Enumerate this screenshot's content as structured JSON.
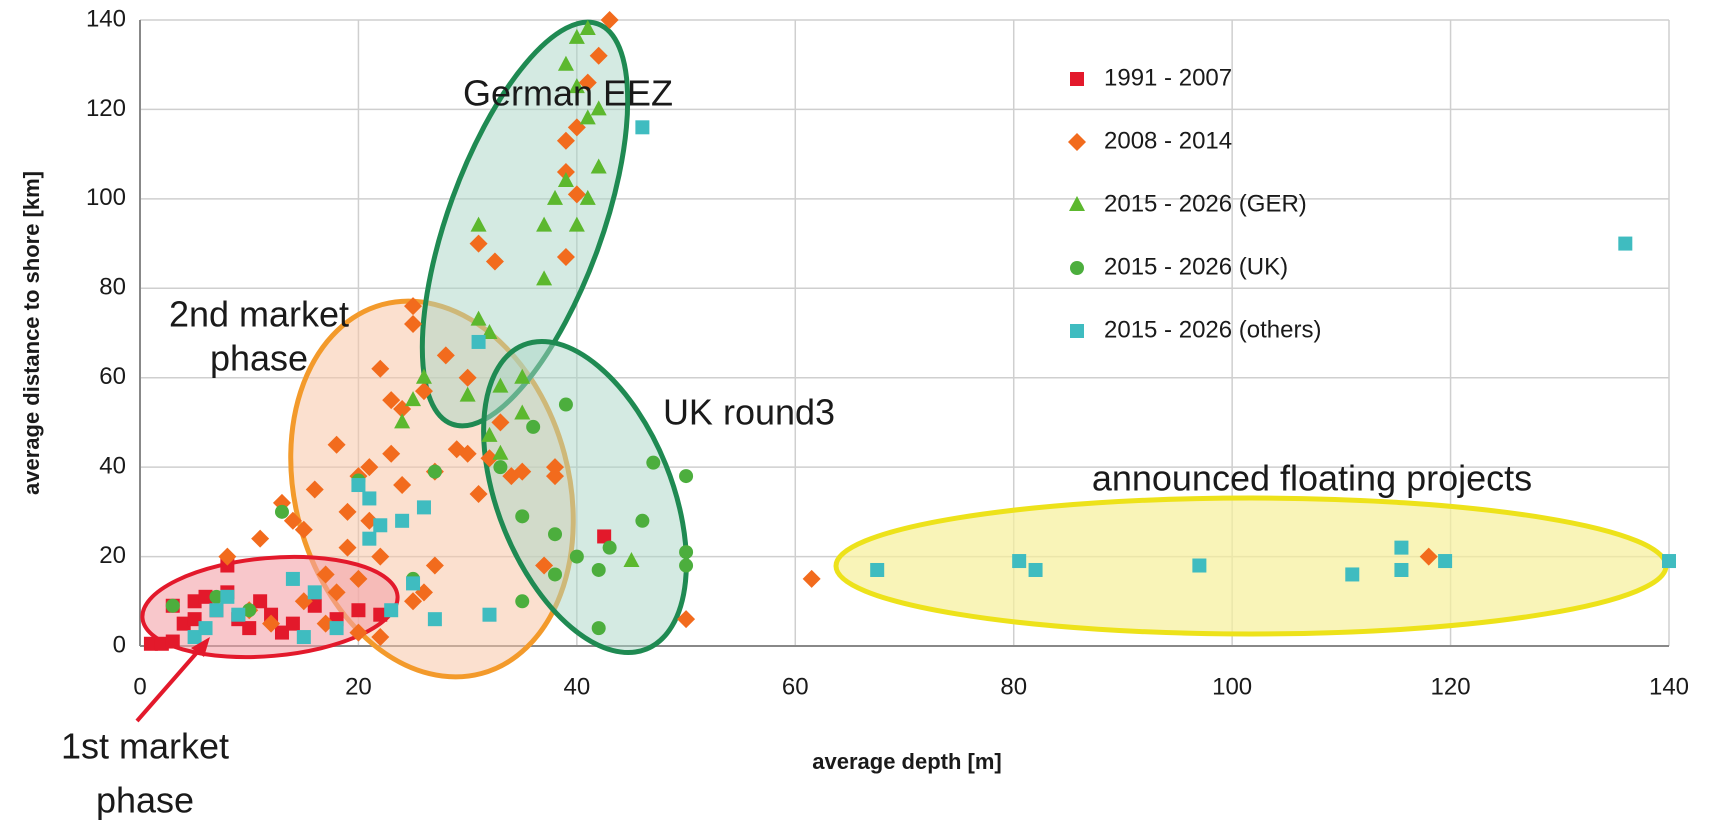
{
  "chart_data": {
    "type": "scatter",
    "xlabel": "average depth [m]",
    "ylabel": "average distance to shore [km]",
    "xlim": [
      0,
      140
    ],
    "ylim": [
      0,
      140
    ],
    "xticks": [
      0,
      20,
      40,
      60,
      80,
      100,
      120,
      140
    ],
    "yticks": [
      0,
      20,
      40,
      60,
      80,
      100,
      120,
      140
    ],
    "grid": true,
    "legend": "upper right",
    "annotations": [
      "German EEZ",
      "2nd market",
      "phase",
      "UK round3",
      "announced floating projects",
      "1st market",
      "phase"
    ],
    "series": [
      {
        "name": "1991 - 2007",
        "color": "#e3192b",
        "marker": "square",
        "x": [
          1,
          2,
          3,
          4,
          5,
          6,
          7,
          8,
          9,
          10,
          11,
          12,
          13,
          14,
          16,
          18,
          20,
          22,
          42.5,
          5,
          3,
          8
        ],
        "values": [
          0.5,
          0.5,
          1,
          5,
          10,
          11,
          8,
          18,
          6,
          4,
          10,
          7,
          3,
          5,
          9,
          6,
          8,
          7,
          24.5,
          6,
          9,
          12
        ]
      },
      {
        "name": "2008 - 2014",
        "color": "#f26b1d",
        "marker": "diamond",
        "x": [
          8,
          11,
          13,
          14,
          15,
          16,
          17,
          18,
          19,
          19,
          20,
          20,
          21,
          21,
          22,
          22,
          23,
          23,
          24,
          24,
          25,
          25,
          26,
          27,
          27,
          28,
          30,
          31,
          31,
          32,
          32.5,
          33,
          34,
          35,
          37,
          38,
          38,
          39,
          39,
          39,
          40,
          40,
          41,
          42,
          43,
          50,
          61.5,
          118,
          15,
          17,
          20,
          22,
          12,
          10,
          18,
          25,
          26,
          29,
          30
        ],
        "values": [
          20,
          24,
          32,
          28,
          26,
          35,
          16,
          45,
          22,
          30,
          38,
          15,
          28,
          40,
          62,
          20,
          43,
          55,
          36,
          53,
          76,
          72,
          57,
          39,
          18,
          65,
          43,
          90,
          34,
          42,
          86,
          50,
          38,
          39,
          18,
          38,
          40,
          87,
          106,
          113,
          116,
          101,
          126,
          132,
          140,
          6,
          15,
          20,
          10,
          5,
          3,
          2,
          5,
          8,
          12,
          10,
          12,
          44,
          60
        ]
      },
      {
        "name": "2015 - 2026 (GER)",
        "color": "#5cb82e",
        "marker": "triangle",
        "x": [
          31,
          31,
          32,
          33,
          32,
          33,
          35,
          35,
          37,
          37,
          38,
          39,
          39,
          40,
          40,
          41,
          41,
          42,
          42,
          40,
          41,
          24,
          25,
          26,
          45,
          30
        ],
        "values": [
          94,
          73,
          70,
          58,
          47,
          43,
          52,
          60,
          94,
          82,
          100,
          104,
          130,
          136,
          125,
          138,
          118,
          120,
          107,
          94,
          100,
          50,
          55,
          60,
          19,
          56
        ]
      },
      {
        "name": "2015 - 2026 (UK)",
        "color": "#4cae3d",
        "marker": "circle",
        "x": [
          3,
          7,
          10,
          13,
          20,
          25,
          27,
          33,
          35,
          35,
          36,
          38,
          39,
          40,
          42,
          42,
          43,
          46,
          47,
          50,
          50,
          50,
          38
        ],
        "values": [
          9,
          11,
          8,
          30,
          37,
          15,
          39,
          40,
          29,
          10,
          49,
          16,
          54,
          20,
          17,
          4,
          22,
          28,
          41,
          38,
          21,
          18,
          25
        ]
      },
      {
        "name": "2015 - 2026 (others)",
        "color": "#3fbcc0",
        "marker": "square",
        "x": [
          5,
          6,
          7,
          8,
          9,
          14,
          15,
          16,
          18,
          20,
          21,
          21,
          22,
          23,
          24,
          25,
          26,
          27,
          32,
          31,
          46,
          67.5,
          80.5,
          82,
          97,
          111,
          115.5,
          115.5,
          119.5,
          136,
          140
        ],
        "values": [
          2,
          4,
          8,
          11,
          7,
          15,
          2,
          12,
          4,
          36,
          33,
          24,
          27,
          8,
          28,
          14,
          31,
          6,
          7,
          68,
          116,
          17,
          19,
          17,
          18,
          16,
          17,
          22,
          19,
          90,
          19
        ]
      }
    ]
  }
}
